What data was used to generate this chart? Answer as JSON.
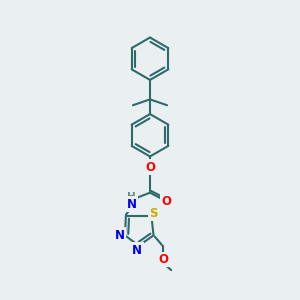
{
  "background_color": "#eaeff1",
  "bond_color": "#2d6b6b",
  "bond_width": 1.5,
  "atom_colors": {
    "N": "#0000ee",
    "O": "#ff0000",
    "S": "#ccaa00",
    "C": "#2d6b6b",
    "H": "#6a8a8a"
  },
  "font_size": 8.5,
  "font_size_small": 7.5
}
